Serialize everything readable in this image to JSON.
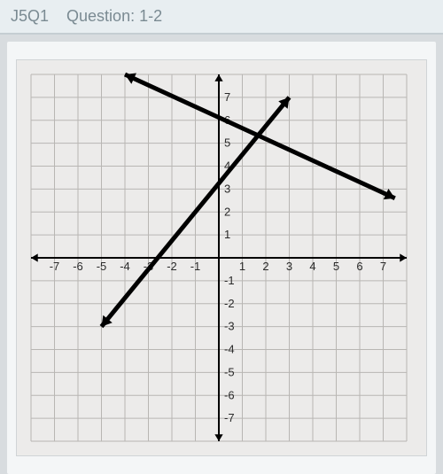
{
  "header": {
    "code": "J5Q1",
    "question_label": "Question: 1-2"
  },
  "chart": {
    "type": "line",
    "background_color": "#ecebea",
    "grid_color": "#b8b6b3",
    "axis_color": "#000000",
    "line_color": "#000000",
    "line_width": 5,
    "xlim": [
      -8,
      8
    ],
    "ylim": [
      -8,
      8
    ],
    "xtick_labels": [
      -7,
      -6,
      -5,
      -4,
      -3,
      -2,
      -1,
      1,
      2,
      3,
      4,
      5,
      6,
      7
    ],
    "ytick_labels": [
      7,
      6,
      5,
      4,
      3,
      2,
      1,
      -1,
      -2,
      -3,
      -4,
      -5,
      -6,
      -7
    ],
    "tick_fontsize": 13,
    "lines": [
      {
        "name": "line1",
        "points": [
          [
            -5,
            -3
          ],
          [
            3,
            7
          ]
        ],
        "arrows": "both"
      },
      {
        "name": "line2",
        "points": [
          [
            -4,
            8
          ],
          [
            7.5,
            2.6
          ]
        ],
        "arrows": "both"
      }
    ]
  }
}
